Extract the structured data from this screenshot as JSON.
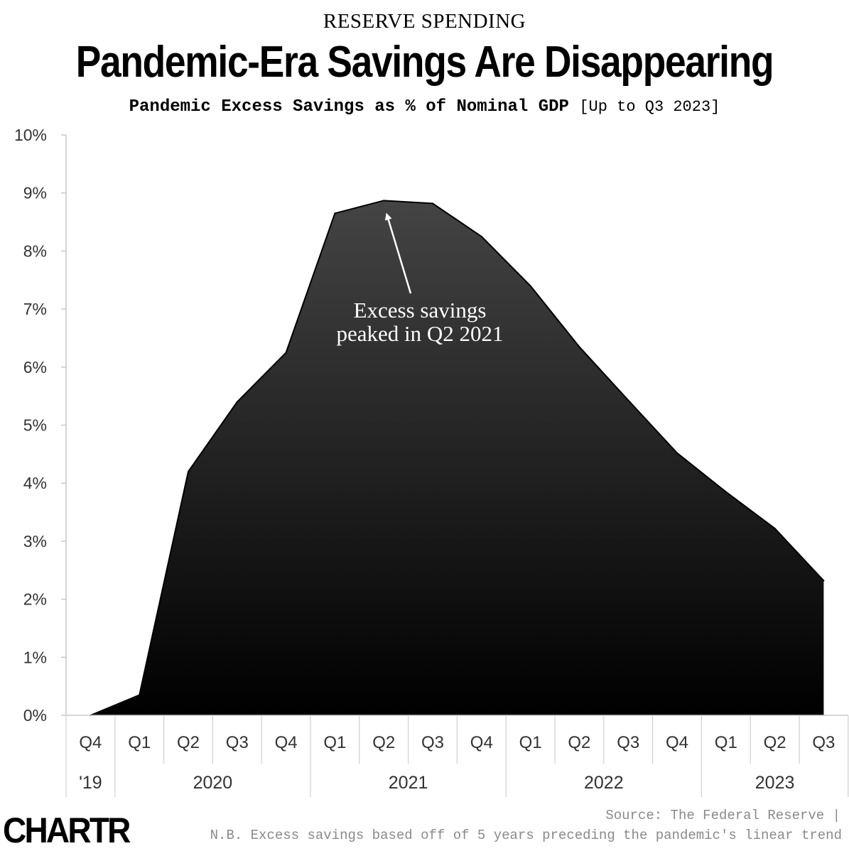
{
  "header": {
    "kicker": "RESERVE SPENDING",
    "title": "Pandemic-Era Savings Are Disappearing",
    "subtitle_main": "Pandemic Excess Savings as % of Nominal GDP",
    "subtitle_note": "[Up to Q3 2023]"
  },
  "chart_data": {
    "type": "area",
    "title": "Pandemic-Era Savings Are Disappearing",
    "subtitle": "Pandemic Excess Savings as % of Nominal GDP [Up to Q3 2023]",
    "categories": [
      "Q4",
      "Q1",
      "Q2",
      "Q3",
      "Q4",
      "Q1",
      "Q2",
      "Q3",
      "Q4",
      "Q1",
      "Q2",
      "Q3",
      "Q4",
      "Q1",
      "Q2",
      "Q3"
    ],
    "year_groups": [
      {
        "label": "'19",
        "span": 1
      },
      {
        "label": "2020",
        "span": 4
      },
      {
        "label": "2021",
        "span": 4
      },
      {
        "label": "2022",
        "span": 4
      },
      {
        "label": "2023",
        "span": 3
      }
    ],
    "series": [
      {
        "values": [
          0.0,
          0.35,
          4.2,
          5.4,
          6.25,
          8.65,
          8.87,
          8.82,
          8.25,
          7.4,
          6.35,
          5.43,
          4.52,
          3.85,
          3.22,
          2.32
        ]
      }
    ],
    "y_ticks": [
      "0%",
      "1%",
      "2%",
      "3%",
      "4%",
      "5%",
      "6%",
      "7%",
      "8%",
      "9%",
      "10%"
    ],
    "ylim": [
      0,
      10
    ],
    "grid": false,
    "fill_gradient": [
      "#444444",
      "#000000"
    ],
    "annotation": {
      "line1": "Excess savings",
      "line2": "peaked in Q2 2021",
      "points_to_index": 6
    }
  },
  "footer": {
    "logo": "CHARTR",
    "source": "Source: The Federal Reserve |",
    "note": "N.B. Excess savings based off of 5 years preceding the pandemic's linear trend"
  }
}
